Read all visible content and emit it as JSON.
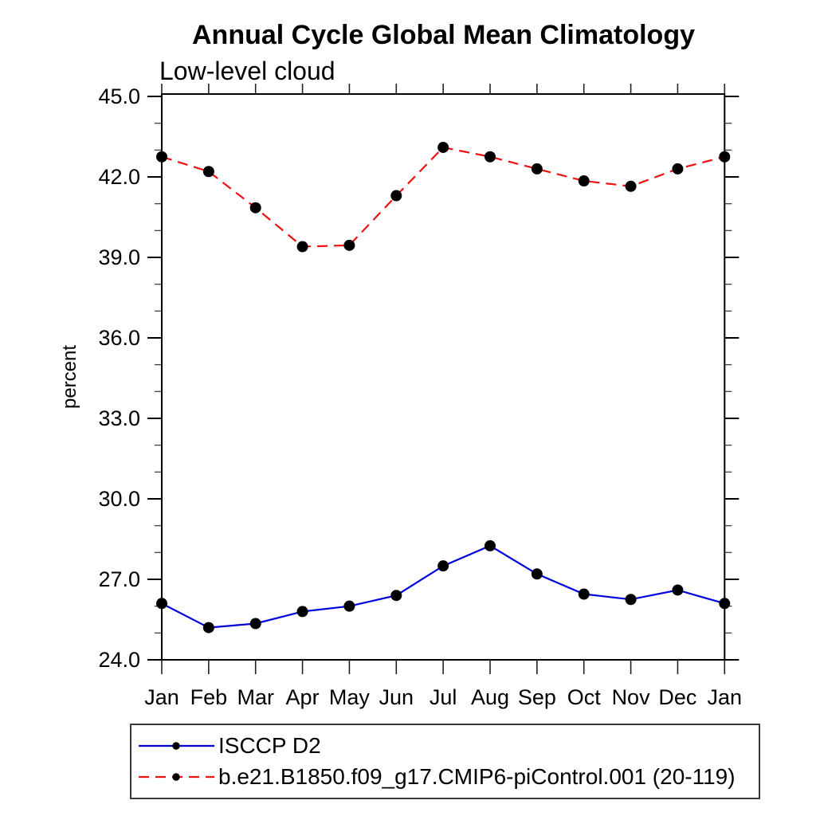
{
  "chart_data": {
    "type": "line",
    "title": "Annual Cycle Global Mean Climatology",
    "subtitle": "Low-level cloud",
    "xlabel": "",
    "ylabel": "percent",
    "categories": [
      "Jan",
      "Feb",
      "Mar",
      "Apr",
      "May",
      "Jun",
      "Jul",
      "Aug",
      "Sep",
      "Oct",
      "Nov",
      "Dec",
      "Jan"
    ],
    "ylim": [
      24.0,
      45.1
    ],
    "yticks_major": [
      24,
      27,
      30,
      33,
      36,
      39,
      42,
      45
    ],
    "ytick_labels": [
      "24.0",
      "27.0",
      "30.0",
      "33.0",
      "36.0",
      "39.0",
      "42.0",
      "45.0"
    ],
    "y_minor_interval": 1.0,
    "grid": false,
    "legend_position": "bottom",
    "axis_color": "#000000",
    "marker_color": "#000000",
    "series": [
      {
        "name": "ISCCP D2",
        "color": "#0000dd",
        "line_style": "solid",
        "marker": "circle",
        "values": [
          26.1,
          25.2,
          25.35,
          25.8,
          26.0,
          26.4,
          27.5,
          28.25,
          27.2,
          26.45,
          26.25,
          26.6,
          26.1
        ]
      },
      {
        "name": "b.e21.B1850.f09_g17.CMIP6-piControl.001 (20-119)",
        "color": "#ee1111",
        "line_style": "dashed",
        "marker": "circle",
        "values": [
          42.75,
          42.2,
          40.85,
          39.4,
          39.45,
          41.3,
          43.1,
          42.75,
          42.3,
          41.85,
          41.65,
          42.3,
          42.75
        ]
      }
    ]
  }
}
